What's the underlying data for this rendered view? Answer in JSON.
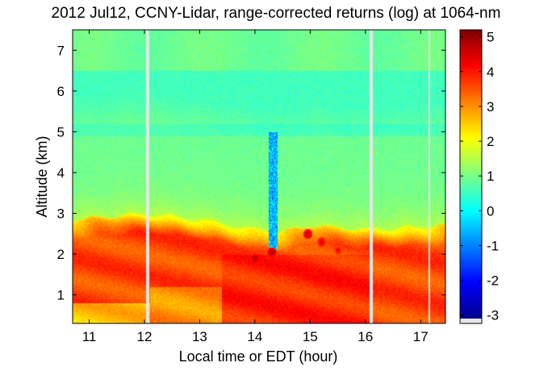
{
  "chart_data": {
    "type": "heatmap",
    "title": "2012 Jul12, CCNY-Lidar, range-corrected returns (log) at 1064-nm",
    "xlabel": "Local time or EDT (hour)",
    "ylabel": "Altitude (km)",
    "xlim": [
      10.7,
      17.45
    ],
    "ylim": [
      0.3,
      7.5
    ],
    "xticks": [
      "11",
      "12",
      "13",
      "14",
      "15",
      "16",
      "17"
    ],
    "yticks": [
      "1",
      "2",
      "3",
      "4",
      "5",
      "6",
      "7"
    ],
    "colorbar": {
      "min": -3.1,
      "max": 5.2,
      "ticks": [
        "5",
        "4",
        "3",
        "2",
        "1",
        "0",
        "-1",
        "-2",
        "-3"
      ],
      "colormap": "jet"
    },
    "data_gaps_hours": [
      12.05,
      16.1,
      17.15
    ],
    "layers": [
      {
        "description": "boundary layer top",
        "points": [
          [
            10.7,
            2.85
          ],
          [
            12.0,
            3.0
          ],
          [
            13.0,
            2.85
          ],
          [
            14.0,
            2.6
          ],
          [
            14.5,
            2.55
          ],
          [
            15.0,
            2.7
          ],
          [
            16.0,
            2.6
          ],
          [
            17.45,
            2.7
          ]
        ]
      },
      {
        "description": "aerosol layer core max",
        "value": 3.6
      },
      {
        "description": "free troposphere value",
        "value": 0.9
      },
      {
        "description": "upper level value",
        "value": 0.5
      }
    ],
    "cloud_column": {
      "x": [
        14.25,
        14.4
      ],
      "y": [
        2.1,
        5.0
      ],
      "min_value": -1.5
    },
    "cloud_base_spots": [
      [
        14.0,
        1.9,
        5.0
      ],
      [
        14.3,
        2.05,
        5.0
      ],
      [
        14.95,
        2.5,
        4.8
      ],
      [
        15.2,
        2.3,
        4.6
      ],
      [
        15.5,
        2.1,
        4.4
      ]
    ]
  }
}
